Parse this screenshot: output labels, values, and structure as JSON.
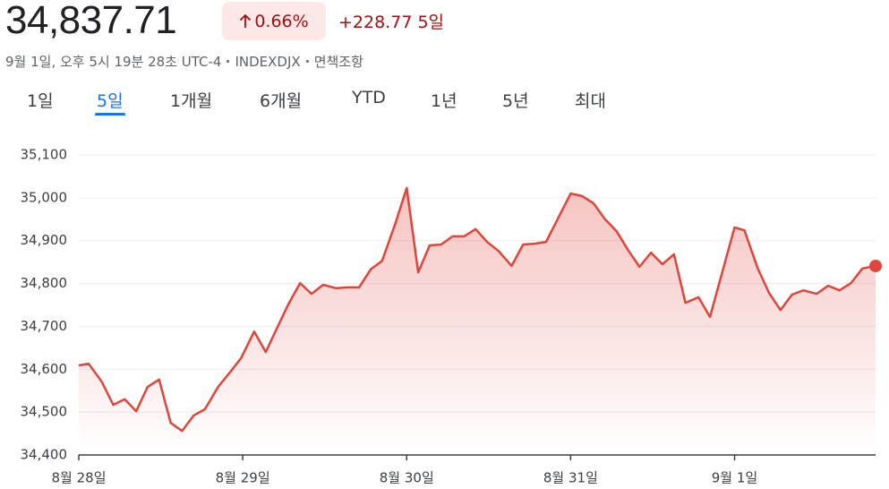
{
  "header": {
    "price": "34,837.71",
    "change_pct": "0.66%",
    "change": "+228.77",
    "period": "5일",
    "timestamp": "9월 1일, 오후 5시 19분 28초 UTC-4",
    "exchange": "INDEXDJX",
    "disclaimer": "면책조항"
  },
  "tabs": {
    "items": [
      "1일",
      "5일",
      "1개월",
      "6개월",
      "YTD",
      "1년",
      "5년",
      "최대"
    ],
    "selected": 1
  },
  "chart_data": {
    "type": "line",
    "color": "#e0443a",
    "grid": true,
    "x": [
      0,
      0.06,
      0.14,
      0.21,
      0.28,
      0.35,
      0.42,
      0.49,
      0.56,
      0.63,
      0.7,
      0.77,
      0.85,
      0.92,
      0.99,
      1.07,
      1.14,
      1.21,
      1.28,
      1.35,
      1.42,
      1.49,
      1.57,
      1.64,
      1.71,
      1.78,
      1.85,
      1.93,
      2.0,
      2.07,
      2.14,
      2.21,
      2.28,
      2.35,
      2.42,
      2.49,
      2.56,
      2.64,
      2.71,
      2.78,
      2.85,
      3.0,
      3.07,
      3.14,
      3.21,
      3.28,
      3.35,
      3.42,
      3.49,
      3.56,
      3.63,
      3.7,
      3.78,
      3.85,
      4.0,
      4.06,
      4.14,
      4.21,
      4.28,
      4.35,
      4.42,
      4.5,
      4.57,
      4.64,
      4.71,
      4.78,
      4.86
    ],
    "series": [
      {
        "name": "INDEXDJX",
        "color": "#e0443a",
        "values": [
          34609,
          34613,
          34571,
          34517,
          34530,
          34502,
          34559,
          34576,
          34475,
          34456,
          34492,
          34507,
          34559,
          34592,
          34626,
          34688,
          34640,
          34697,
          34753,
          34801,
          34776,
          34797,
          34789,
          34791,
          34791,
          34833,
          34853,
          34939,
          35023,
          34826,
          34889,
          34891,
          34910,
          34910,
          34927,
          34897,
          34876,
          34841,
          34891,
          34893,
          34897,
          35010,
          35004,
          34987,
          34950,
          34922,
          34878,
          34839,
          34872,
          34845,
          34868,
          34755,
          34768,
          34722,
          34931,
          34924,
          34837,
          34778,
          34738,
          34774,
          34784,
          34776,
          34795,
          34784,
          34801,
          34835,
          34841
        ]
      }
    ],
    "xlim": [
      0,
      4.86
    ],
    "xticks": [
      {
        "value": 0,
        "label": "8월 28일"
      },
      {
        "value": 1,
        "label": "8월 29일"
      },
      {
        "value": 2,
        "label": "8월 30일"
      },
      {
        "value": 3,
        "label": "8월 31일"
      },
      {
        "value": 4,
        "label": "9월 1일"
      }
    ],
    "ylim": [
      34400,
      35100
    ],
    "yticks": [
      {
        "value": 34400,
        "label": "34,400"
      },
      {
        "value": 34500,
        "label": "34,500"
      },
      {
        "value": 34600,
        "label": "34,600"
      },
      {
        "value": 34700,
        "label": "34,700"
      },
      {
        "value": 34800,
        "label": "34,800"
      },
      {
        "value": 34900,
        "label": "34,900"
      },
      {
        "value": 35000,
        "label": "35,000"
      },
      {
        "value": 35100,
        "label": "35,100"
      }
    ]
  }
}
